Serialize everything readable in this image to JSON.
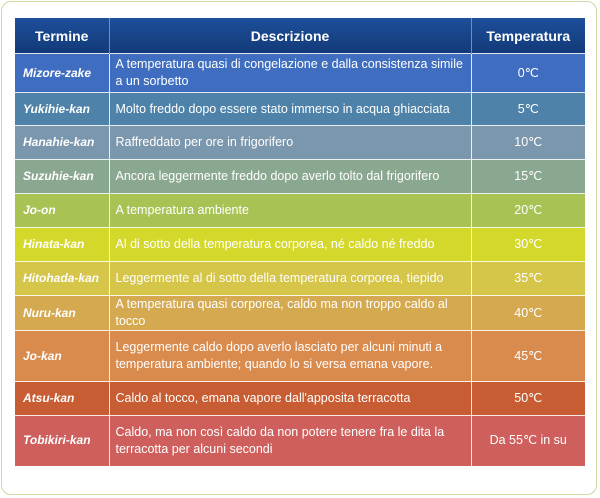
{
  "header": {
    "term": "Termine",
    "description": "Descrizione",
    "temperature": "Temperatura"
  },
  "rows": [
    {
      "term": "Mizore-zake",
      "description": "A temperatura quasi di congelazione e dalla consistenza simile a un sorbetto",
      "temperature": "0℃",
      "color": "#3f6dc0"
    },
    {
      "term": "Yukihie-kan",
      "description": "Molto freddo dopo essere stato immerso in acqua ghiacciata",
      "temperature": "5℃",
      "color": "#4f82a8"
    },
    {
      "term": "Hanahie-kan",
      "description": "Raffreddato per ore in frigorifero",
      "temperature": "10℃",
      "color": "#7b97ae"
    },
    {
      "term": "Suzuhie-kan",
      "description": "Ancora leggermente freddo dopo averlo tolto dal frigorifero",
      "temperature": "15℃",
      "color": "#8aa78f"
    },
    {
      "term": "Jo-on",
      "description": "A temperatura ambiente",
      "temperature": "20℃",
      "color": "#a8c254"
    },
    {
      "term": "Hinata-kan",
      "description": "Al di sotto della temperatura corporea, né caldo né freddo",
      "temperature": "30℃",
      "color": "#d4d82b"
    },
    {
      "term": "Hitohada-kan",
      "description": "Leggermente al di sotto della temperatura corporea, tiepido",
      "temperature": "35℃",
      "color": "#d5c548"
    },
    {
      "term": "Nuru-kan",
      "description": "A temperatura quasi corporea, caldo ma non troppo caldo al tocco",
      "temperature": "40℃",
      "color": "#d4a94f"
    },
    {
      "term": "Jo-kan",
      "description": "Leggermente caldo dopo averlo lasciato per alcuni minuti a temperatura ambiente; quando lo si versa emana vapore.",
      "temperature": "45℃",
      "color": "#d98a4d"
    },
    {
      "term": "Atsu-kan",
      "description": "Caldo al tocco, emana vapore dall'apposita terracotta",
      "temperature": "50℃",
      "color": "#c85d33"
    },
    {
      "term": "Tobikiri-kan",
      "description": "Caldo, ma non così caldo da non potere tenere fra le dita la terracotta per alcuni secondi",
      "temperature": "Da 55℃ in su",
      "color": "#cf5f5c"
    }
  ]
}
